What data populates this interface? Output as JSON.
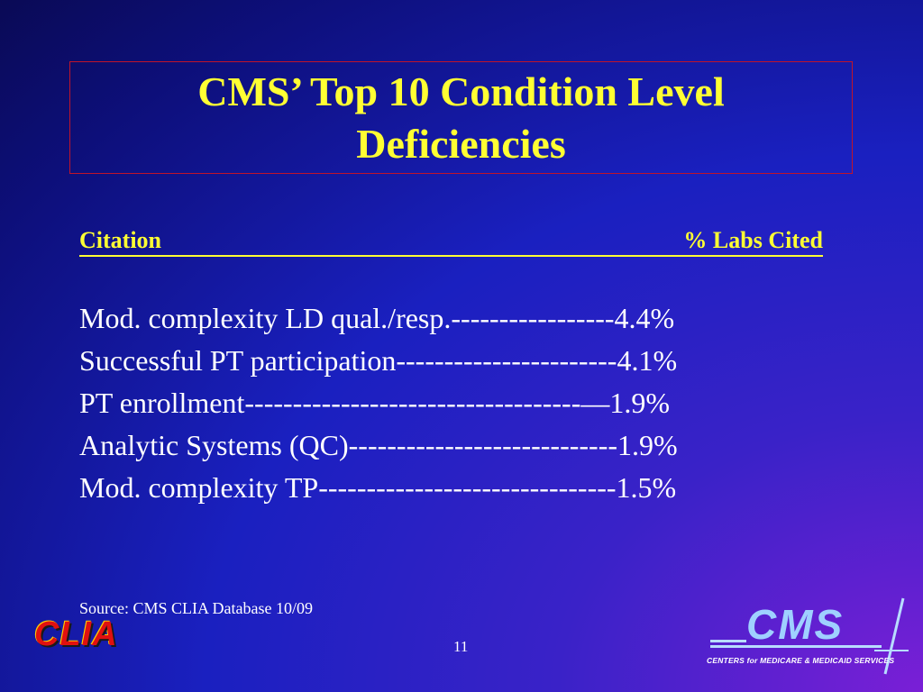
{
  "slide": {
    "title": "CMS’ Top 10 Condition Level Deficiencies",
    "header": {
      "left": "Citation",
      "right": "% Labs Cited"
    },
    "rows": [
      "Mod. complexity LD qual./resp.-----------------4.4%",
      "Successful PT participation-----------------------4.1%",
      "PT enrollment-----------------------------------—1.9%",
      "Analytic Systems (QC)----------------------------1.9%",
      "Mod. complexity TP-------------------------------1.5%"
    ],
    "source": "Source: CMS CLIA Database 10/09",
    "page_number": "11"
  },
  "logos": {
    "clia": "CLIA",
    "cms": "CMS",
    "cms_subtitle": "CENTERS for MEDICARE & MEDICAID SERVICES"
  },
  "colors": {
    "title": "#ffff33",
    "title_border": "#c0142a",
    "body_text": "#ffffff",
    "clia_logo": "#e01010",
    "cms_logo": "#9fd0ff"
  }
}
